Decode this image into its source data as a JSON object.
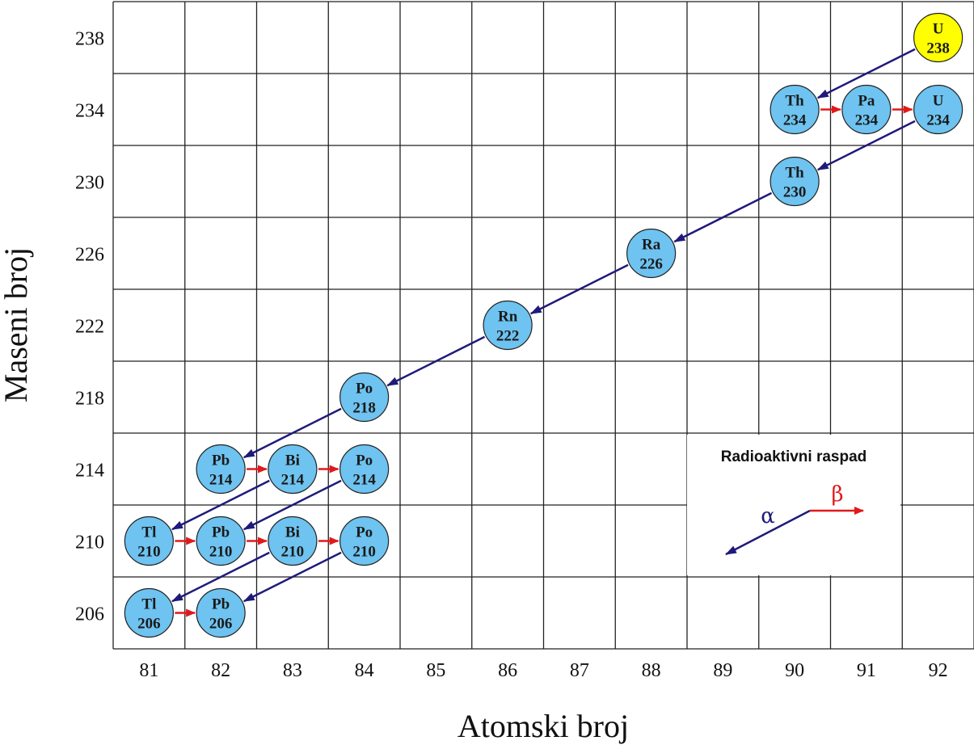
{
  "axes": {
    "x_title": "Atomski broj",
    "y_title": "Maseni broj",
    "x_ticks": [
      "81",
      "82",
      "83",
      "84",
      "85",
      "86",
      "87",
      "88",
      "89",
      "90",
      "91",
      "92"
    ],
    "y_ticks": [
      "238",
      "234",
      "230",
      "226",
      "222",
      "218",
      "214",
      "210",
      "206"
    ]
  },
  "colors": {
    "nuclide": "#6ec3f0",
    "start_nuclide": "#ffff00",
    "alpha": "#1f1a7a",
    "beta": "#e0191b",
    "grid": "#222222"
  },
  "nuclides": [
    {
      "symbol": "U",
      "mass": "238",
      "col": 11,
      "row": 0,
      "highlight": true
    },
    {
      "symbol": "Th",
      "mass": "234",
      "col": 9,
      "row": 1
    },
    {
      "symbol": "Pa",
      "mass": "234",
      "col": 10,
      "row": 1
    },
    {
      "symbol": "U",
      "mass": "234",
      "col": 11,
      "row": 1
    },
    {
      "symbol": "Th",
      "mass": "230",
      "col": 9,
      "row": 2
    },
    {
      "symbol": "Ra",
      "mass": "226",
      "col": 7,
      "row": 3
    },
    {
      "symbol": "Rn",
      "mass": "222",
      "col": 5,
      "row": 4
    },
    {
      "symbol": "Po",
      "mass": "218",
      "col": 3,
      "row": 5
    },
    {
      "symbol": "Pb",
      "mass": "214",
      "col": 1,
      "row": 6
    },
    {
      "symbol": "Bi",
      "mass": "214",
      "col": 2,
      "row": 6
    },
    {
      "symbol": "Po",
      "mass": "214",
      "col": 3,
      "row": 6
    },
    {
      "symbol": "Tl",
      "mass": "210",
      "col": 0,
      "row": 7
    },
    {
      "symbol": "Pb",
      "mass": "210",
      "col": 1,
      "row": 7
    },
    {
      "symbol": "Bi",
      "mass": "210",
      "col": 2,
      "row": 7
    },
    {
      "symbol": "Po",
      "mass": "210",
      "col": 3,
      "row": 7
    },
    {
      "symbol": "Tl",
      "mass": "206",
      "col": 0,
      "row": 8
    },
    {
      "symbol": "Pb",
      "mass": "206",
      "col": 1,
      "row": 8
    }
  ],
  "decays": [
    {
      "type": "alpha",
      "from": 0,
      "to": 1
    },
    {
      "type": "beta",
      "from": 1,
      "to": 2
    },
    {
      "type": "beta",
      "from": 2,
      "to": 3
    },
    {
      "type": "alpha",
      "from": 3,
      "to": 4
    },
    {
      "type": "alpha",
      "from": 4,
      "to": 5
    },
    {
      "type": "alpha",
      "from": 5,
      "to": 6
    },
    {
      "type": "alpha",
      "from": 6,
      "to": 7
    },
    {
      "type": "alpha",
      "from": 7,
      "to": 8
    },
    {
      "type": "beta",
      "from": 8,
      "to": 9
    },
    {
      "type": "beta",
      "from": 9,
      "to": 10
    },
    {
      "type": "alpha",
      "from": 9,
      "to": 11
    },
    {
      "type": "alpha",
      "from": 10,
      "to": 12
    },
    {
      "type": "beta",
      "from": 11,
      "to": 12
    },
    {
      "type": "beta",
      "from": 12,
      "to": 13
    },
    {
      "type": "beta",
      "from": 13,
      "to": 14
    },
    {
      "type": "alpha",
      "from": 13,
      "to": 15
    },
    {
      "type": "alpha",
      "from": 14,
      "to": 16
    },
    {
      "type": "beta",
      "from": 15,
      "to": 16
    }
  ],
  "legend": {
    "title": "Radioaktivni raspad",
    "alpha_label": "α",
    "beta_label": "β"
  }
}
